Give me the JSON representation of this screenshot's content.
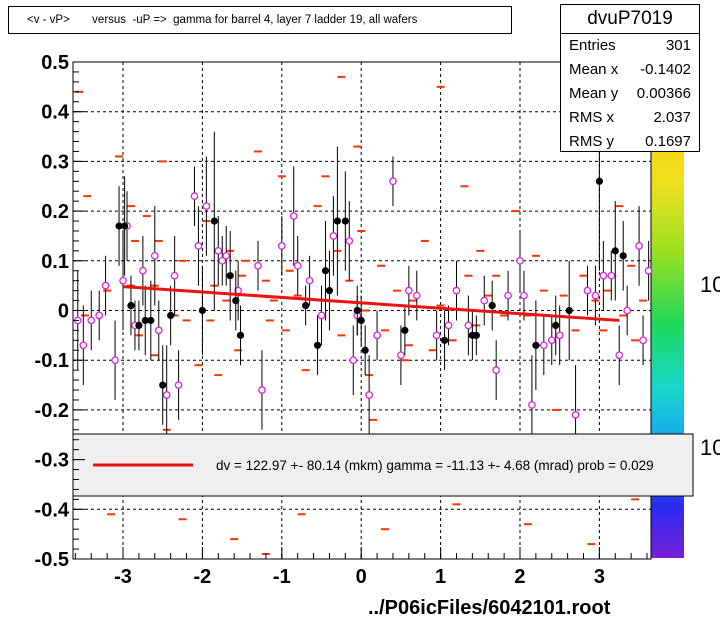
{
  "title": "<v - vP>       versus  -uP =>  gamma for barrel 4, layer 7 ladder 19, all wafers",
  "stats": {
    "name": "dvuP7019",
    "rows": [
      {
        "label": "Entries",
        "value": "301"
      },
      {
        "label": "Mean x",
        "value": "-0.1402"
      },
      {
        "label": "Mean y",
        "value": "0.00366"
      },
      {
        "label": "RMS x",
        "value": "2.037"
      },
      {
        "label": "RMS y",
        "value": "0.1697"
      }
    ]
  },
  "fit_legend": "dv =  122.97 +- 80.14 (mkm) gamma =  -11.13 +-  4.68 (mrad) prob = 0.029",
  "footer": "../P06icFiles/6042101.root",
  "colors": {
    "fit": "#ee1111",
    "dash": "#ff3300",
    "open_marker": "#dd22dd",
    "filled_marker": "#000000"
  },
  "palette_labels": [
    "10",
    "10"
  ],
  "chart_data": {
    "type": "scatter",
    "title": "<v - vP>       versus  -uP =>  gamma for barrel 4, layer 7 ladder 19, all wafers",
    "xlabel": "",
    "ylabel": "",
    "xlim": [
      -3.63,
      3.65
    ],
    "ylim": [
      -0.5,
      0.5
    ],
    "x_ticks": [
      -3,
      -2,
      -1,
      0,
      1,
      2,
      3
    ],
    "x_tick_labels": [
      "-3",
      "-2",
      "-1",
      "0",
      "1",
      "2",
      "3"
    ],
    "y_ticks": [
      -0.5,
      -0.4,
      -0.3,
      -0.2,
      -0.1,
      0,
      0.1,
      0.2,
      0.3,
      0.4,
      0.5
    ],
    "y_tick_labels": [
      "-0.5",
      "-0.4",
      "-0.3",
      "-0.2",
      "-0.1",
      "0",
      "0.1",
      "0.2",
      "0.3",
      "0.4",
      "0.5"
    ],
    "grid": true,
    "fit_line": {
      "x": [
        -3.0,
        3.25
      ],
      "y": [
        0.048,
        -0.02
      ]
    },
    "filled_points": [
      {
        "x": -3.05,
        "y": 0.17,
        "err": 0.08
      },
      {
        "x": -2.98,
        "y": 0.17,
        "err": 0.1
      },
      {
        "x": -2.9,
        "y": 0.01,
        "err": 0.06
      },
      {
        "x": -2.8,
        "y": -0.03,
        "err": 0.05
      },
      {
        "x": -2.72,
        "y": -0.02,
        "err": 0.07
      },
      {
        "x": -2.65,
        "y": -0.02,
        "err": 0.08
      },
      {
        "x": -2.5,
        "y": -0.15,
        "err": 0.08
      },
      {
        "x": -2.4,
        "y": -0.01,
        "err": 0.06
      },
      {
        "x": -2.0,
        "y": 0.0,
        "err": 0.09
      },
      {
        "x": -1.85,
        "y": 0.18,
        "err": 0.18
      },
      {
        "x": -1.65,
        "y": 0.07,
        "err": 0.09
      },
      {
        "x": -1.58,
        "y": 0.02,
        "err": 0.06
      },
      {
        "x": -1.52,
        "y": -0.05,
        "err": 0.06
      },
      {
        "x": -0.7,
        "y": 0.01,
        "err": 0.04
      },
      {
        "x": -0.55,
        "y": -0.07,
        "err": 0.06
      },
      {
        "x": -0.45,
        "y": 0.08,
        "err": 0.1
      },
      {
        "x": -0.4,
        "y": 0.04,
        "err": 0.08
      },
      {
        "x": -0.3,
        "y": 0.18,
        "err": 0.15
      },
      {
        "x": -0.2,
        "y": 0.18,
        "err": 0.1
      },
      {
        "x": -0.05,
        "y": -0.0,
        "err": 0.05
      },
      {
        "x": 0.0,
        "y": -0.02,
        "err": 0.05
      },
      {
        "x": 0.05,
        "y": -0.08,
        "err": 0.05
      },
      {
        "x": 0.55,
        "y": -0.04,
        "err": 0.05
      },
      {
        "x": 1.05,
        "y": -0.06,
        "err": 0.06
      },
      {
        "x": 1.4,
        "y": -0.05,
        "err": 0.05
      },
      {
        "x": 1.45,
        "y": -0.05,
        "err": 0.04
      },
      {
        "x": 1.65,
        "y": 0.01,
        "err": 0.05
      },
      {
        "x": 2.2,
        "y": -0.07,
        "err": 0.09
      },
      {
        "x": 2.45,
        "y": -0.03,
        "err": 0.06
      },
      {
        "x": 2.62,
        "y": 0.0,
        "err": 0.1
      },
      {
        "x": 3.0,
        "y": 0.26,
        "err": 0.18
      },
      {
        "x": 3.2,
        "y": 0.12,
        "err": 0.1
      },
      {
        "x": 3.3,
        "y": 0.11,
        "err": 0.07
      }
    ],
    "open_points": [
      {
        "x": -3.57,
        "y": -0.02,
        "err": 0.1
      },
      {
        "x": -3.5,
        "y": -0.07,
        "err": 0.08
      },
      {
        "x": -3.4,
        "y": -0.02,
        "err": 0.06
      },
      {
        "x": -3.3,
        "y": -0.01,
        "err": 0.05
      },
      {
        "x": -3.22,
        "y": 0.05,
        "err": 0.06
      },
      {
        "x": -3.1,
        "y": -0.1,
        "err": 0.08
      },
      {
        "x": -3.0,
        "y": 0.06,
        "err": 0.1
      },
      {
        "x": -2.95,
        "y": 0.17,
        "err": 0.07
      },
      {
        "x": -2.85,
        "y": -0.03,
        "err": 0.05
      },
      {
        "x": -2.75,
        "y": 0.08,
        "err": 0.07
      },
      {
        "x": -2.6,
        "y": 0.11,
        "err": 0.1
      },
      {
        "x": -2.55,
        "y": -0.04,
        "err": 0.06
      },
      {
        "x": -2.45,
        "y": -0.17,
        "err": 0.1
      },
      {
        "x": -2.35,
        "y": 0.07,
        "err": 0.08
      },
      {
        "x": -2.3,
        "y": -0.15,
        "err": 0.07
      },
      {
        "x": -2.1,
        "y": 0.23,
        "err": 0.06
      },
      {
        "x": -2.05,
        "y": 0.13,
        "err": 0.08
      },
      {
        "x": -1.95,
        "y": 0.21,
        "err": 0.1
      },
      {
        "x": -1.8,
        "y": 0.12,
        "err": 0.07
      },
      {
        "x": -1.75,
        "y": 0.1,
        "err": 0.05
      },
      {
        "x": -1.7,
        "y": 0.11,
        "err": 0.06
      },
      {
        "x": -1.55,
        "y": 0.04,
        "err": 0.06
      },
      {
        "x": -1.3,
        "y": 0.09,
        "err": 0.05
      },
      {
        "x": -1.25,
        "y": -0.16,
        "err": 0.08
      },
      {
        "x": -1.0,
        "y": 0.13,
        "err": 0.06
      },
      {
        "x": -0.85,
        "y": 0.19,
        "err": 0.1
      },
      {
        "x": -0.8,
        "y": 0.09,
        "err": 0.06
      },
      {
        "x": -0.65,
        "y": 0.06,
        "err": 0.05
      },
      {
        "x": -0.5,
        "y": -0.01,
        "err": 0.06
      },
      {
        "x": -0.35,
        "y": 0.15,
        "err": 0.08
      },
      {
        "x": -0.15,
        "y": 0.14,
        "err": 0.08
      },
      {
        "x": -0.1,
        "y": -0.1,
        "err": 0.07
      },
      {
        "x": -0.05,
        "y": -0.01,
        "err": 0.04
      },
      {
        "x": 0.1,
        "y": -0.17,
        "err": 0.08
      },
      {
        "x": 0.2,
        "y": -0.05,
        "err": 0.05
      },
      {
        "x": 0.4,
        "y": 0.26,
        "err": 0.05
      },
      {
        "x": 0.5,
        "y": -0.09,
        "err": 0.06
      },
      {
        "x": 0.6,
        "y": 0.04,
        "err": 0.05
      },
      {
        "x": 0.7,
        "y": 0.03,
        "err": 0.05
      },
      {
        "x": 0.95,
        "y": -0.05,
        "err": 0.05
      },
      {
        "x": 1.1,
        "y": -0.03,
        "err": 0.04
      },
      {
        "x": 1.2,
        "y": 0.04,
        "err": 0.06
      },
      {
        "x": 1.35,
        "y": -0.03,
        "err": 0.06
      },
      {
        "x": 1.55,
        "y": 0.02,
        "err": 0.05
      },
      {
        "x": 1.7,
        "y": -0.12,
        "err": 0.06
      },
      {
        "x": 1.85,
        "y": 0.03,
        "err": 0.05
      },
      {
        "x": 2.0,
        "y": 0.1,
        "err": 0.06
      },
      {
        "x": 2.05,
        "y": 0.03,
        "err": 0.05
      },
      {
        "x": 2.15,
        "y": -0.19,
        "err": 0.1
      },
      {
        "x": 2.3,
        "y": -0.07,
        "err": 0.06
      },
      {
        "x": 2.4,
        "y": -0.06,
        "err": 0.05
      },
      {
        "x": 2.5,
        "y": -0.05,
        "err": 0.06
      },
      {
        "x": 2.7,
        "y": -0.21,
        "err": 0.1
      },
      {
        "x": 2.85,
        "y": 0.04,
        "err": 0.05
      },
      {
        "x": 2.95,
        "y": 0.03,
        "err": 0.06
      },
      {
        "x": 3.05,
        "y": 0.07,
        "err": 0.07
      },
      {
        "x": 3.15,
        "y": 0.07,
        "err": 0.05
      },
      {
        "x": 3.25,
        "y": -0.09,
        "err": 0.06
      },
      {
        "x": 3.35,
        "y": 0.0,
        "err": 0.05
      },
      {
        "x": 3.5,
        "y": 0.13,
        "err": 0.08
      },
      {
        "x": 3.55,
        "y": -0.06,
        "err": 0.05
      },
      {
        "x": 3.62,
        "y": 0.08,
        "err": 0.06
      }
    ],
    "dash_marks": [
      {
        "x": -3.55,
        "y": 0.44
      },
      {
        "x": -3.48,
        "y": -0.01
      },
      {
        "x": -3.45,
        "y": 0.23
      },
      {
        "x": -3.2,
        "y": 0.04
      },
      {
        "x": -3.05,
        "y": 0.31
      },
      {
        "x": -2.9,
        "y": 0.21
      },
      {
        "x": -2.9,
        "y": 0.05
      },
      {
        "x": -2.85,
        "y": 0.14
      },
      {
        "x": -2.8,
        "y": -0.05
      },
      {
        "x": -2.7,
        "y": 0.19
      },
      {
        "x": -2.6,
        "y": 0.05
      },
      {
        "x": -2.6,
        "y": -0.09
      },
      {
        "x": -2.55,
        "y": 0.14
      },
      {
        "x": -2.5,
        "y": 0.3
      },
      {
        "x": -2.45,
        "y": -0.24
      },
      {
        "x": -2.35,
        "y": -0.01
      },
      {
        "x": -2.25,
        "y": 0.1
      },
      {
        "x": -2.2,
        "y": -0.02
      },
      {
        "x": -2.05,
        "y": -0.11
      },
      {
        "x": -1.95,
        "y": 0.18
      },
      {
        "x": -1.9,
        "y": -0.02
      },
      {
        "x": -1.85,
        "y": 0.05
      },
      {
        "x": -1.8,
        "y": -0.13
      },
      {
        "x": -1.7,
        "y": 0.02
      },
      {
        "x": -1.65,
        "y": 0.12
      },
      {
        "x": -1.55,
        "y": -0.08
      },
      {
        "x": -1.5,
        "y": 0.07
      },
      {
        "x": -1.45,
        "y": 0.1
      },
      {
        "x": -1.3,
        "y": 0.32
      },
      {
        "x": -1.2,
        "y": 0.06
      },
      {
        "x": -1.15,
        "y": -0.02
      },
      {
        "x": -1.1,
        "y": 0.02
      },
      {
        "x": -1.0,
        "y": 0.27
      },
      {
        "x": -0.95,
        "y": -0.04
      },
      {
        "x": -0.9,
        "y": 0.08
      },
      {
        "x": -0.8,
        "y": 0.03
      },
      {
        "x": -0.7,
        "y": -0.12
      },
      {
        "x": -0.55,
        "y": 0.21
      },
      {
        "x": -0.45,
        "y": 0.27
      },
      {
        "x": -0.3,
        "y": 0.12
      },
      {
        "x": -0.25,
        "y": -0.05
      },
      {
        "x": -0.25,
        "y": 0.47
      },
      {
        "x": -0.15,
        "y": 0.06
      },
      {
        "x": -0.05,
        "y": 0.33
      },
      {
        "x": 0.0,
        "y": 0.16
      },
      {
        "x": 0.05,
        "y": 0.0
      },
      {
        "x": 0.1,
        "y": -0.13
      },
      {
        "x": 0.15,
        "y": -0.22
      },
      {
        "x": 0.25,
        "y": 0.09
      },
      {
        "x": 0.3,
        "y": -0.04
      },
      {
        "x": 0.45,
        "y": 0.04
      },
      {
        "x": 0.55,
        "y": -0.1
      },
      {
        "x": 0.6,
        "y": -0.07
      },
      {
        "x": 0.65,
        "y": 0.02
      },
      {
        "x": 0.8,
        "y": 0.14
      },
      {
        "x": 0.9,
        "y": -0.08
      },
      {
        "x": 1.0,
        "y": 0.45
      },
      {
        "x": 1.0,
        "y": 0.01
      },
      {
        "x": 1.15,
        "y": -0.06
      },
      {
        "x": 1.3,
        "y": 0.25
      },
      {
        "x": 1.35,
        "y": 0.07
      },
      {
        "x": 1.45,
        "y": -0.03
      },
      {
        "x": 1.5,
        "y": 0.12
      },
      {
        "x": 1.6,
        "y": 0.03
      },
      {
        "x": 1.7,
        "y": 0.07
      },
      {
        "x": 1.8,
        "y": -0.01
      },
      {
        "x": 1.95,
        "y": 0.2
      },
      {
        "x": 2.0,
        "y": 0.1
      },
      {
        "x": 2.1,
        "y": -0.01
      },
      {
        "x": 2.2,
        "y": 0.11
      },
      {
        "x": 2.25,
        "y": -0.07
      },
      {
        "x": 2.3,
        "y": 0.04
      },
      {
        "x": 2.45,
        "y": -0.2
      },
      {
        "x": 2.55,
        "y": 0.03
      },
      {
        "x": 2.7,
        "y": -0.04
      },
      {
        "x": 2.8,
        "y": 0.07
      },
      {
        "x": 2.95,
        "y": 0.02
      },
      {
        "x": 3.05,
        "y": -0.04
      },
      {
        "x": 3.1,
        "y": 0.04
      },
      {
        "x": 3.25,
        "y": 0.21
      },
      {
        "x": 3.3,
        "y": -0.01
      },
      {
        "x": 3.4,
        "y": 0.09
      },
      {
        "x": 3.45,
        "y": -0.06
      },
      {
        "x": 3.55,
        "y": 0.02
      },
      {
        "x": -3.55,
        "y": -0.37
      },
      {
        "x": -3.15,
        "y": -0.41
      },
      {
        "x": -2.25,
        "y": -0.42
      },
      {
        "x": -1.6,
        "y": -0.46
      },
      {
        "x": -1.2,
        "y": -0.49
      },
      {
        "x": -0.75,
        "y": -0.41
      },
      {
        "x": 0.3,
        "y": -0.44
      },
      {
        "x": 1.2,
        "y": -0.39
      },
      {
        "x": 2.1,
        "y": -0.43
      },
      {
        "x": 2.9,
        "y": -0.47
      },
      {
        "x": 3.45,
        "y": -0.38
      }
    ]
  }
}
